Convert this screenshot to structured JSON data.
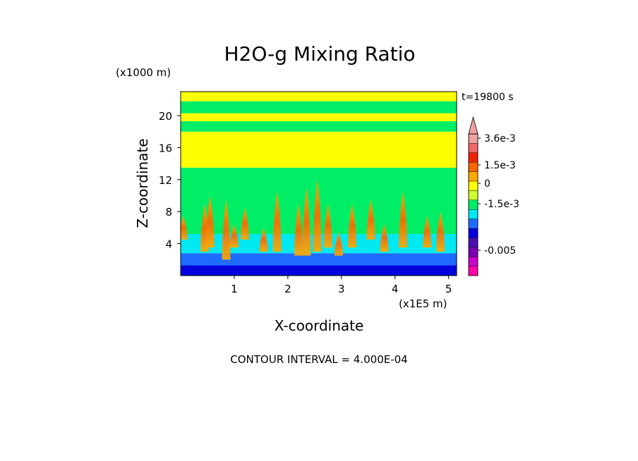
{
  "chart_data": {
    "type": "heatmap",
    "title": "H2O-g Mixing Ratio",
    "xlabel": "X-coordinate",
    "ylabel": "Z-coordinate",
    "x_unit": "(x1E5 m)",
    "y_unit": "(x1000 m)",
    "time_label": "t=19800 s",
    "footer": "CONTOUR INTERVAL = 4.000E-04",
    "xlim": [
      0,
      5.15
    ],
    "ylim": [
      0,
      23
    ],
    "x_ticks": [
      1,
      2,
      3,
      4,
      5
    ],
    "x_tick_labels": [
      "1",
      "2",
      "3",
      "4",
      "5"
    ],
    "y_ticks": [
      4,
      8,
      12,
      16,
      20
    ],
    "y_tick_labels": [
      "4",
      "8",
      "12",
      "16",
      "20"
    ],
    "colorbar": {
      "bands": [
        {
          "color": "#ff00aa"
        },
        {
          "color": "#cc00cc"
        },
        {
          "color": "#7a00b0"
        },
        {
          "color": "#4b0fb0"
        },
        {
          "color": "#0000dd"
        },
        {
          "color": "#1e6cff"
        },
        {
          "color": "#00e8f0"
        },
        {
          "color": "#00ee66"
        },
        {
          "color": "#ccff33"
        },
        {
          "color": "#ffff00"
        },
        {
          "color": "#ffaa00"
        },
        {
          "color": "#ff6600"
        },
        {
          "color": "#ee2200"
        },
        {
          "color": "#ee6666"
        },
        {
          "color": "#f0a0a0"
        }
      ],
      "labels": [
        {
          "text": "3.6e-3",
          "value": 0.0036
        },
        {
          "text": "1.5e-3",
          "value": 0.0015
        },
        {
          "text": "0",
          "value": 0
        },
        {
          "text": "-1.5e-3",
          "value": -0.0015
        },
        {
          "text": "-0.005",
          "value": -0.005
        }
      ]
    },
    "regions": [
      {
        "zmin": 0,
        "zmax": 1.3,
        "color": "#0000dd"
      },
      {
        "zmin": 1.3,
        "zmax": 2.8,
        "color": "#1e6cff"
      },
      {
        "zmin": 2.8,
        "zmax": 5.2,
        "color": "#00e8f0"
      },
      {
        "zmin": 5.2,
        "zmax": 13.5,
        "color": "#00ee66"
      },
      {
        "zmin": 13.5,
        "zmax": 18.0,
        "color": "#ffff00"
      },
      {
        "zmin": 18.0,
        "zmax": 19.3,
        "color": "#00ee66"
      },
      {
        "zmin": 19.3,
        "zmax": 20.3,
        "color": "#ffff00"
      },
      {
        "zmin": 20.3,
        "zmax": 21.8,
        "color": "#00ee66"
      },
      {
        "zmin": 21.8,
        "zmax": 23,
        "color": "#ffff00"
      }
    ],
    "plumes": [
      {
        "x": 0.05,
        "z0": 4.5,
        "z1": 7.5
      },
      {
        "x": 0.45,
        "z0": 3.0,
        "z1": 9.0
      },
      {
        "x": 0.55,
        "z0": 3.5,
        "z1": 10.0
      },
      {
        "x": 0.85,
        "z0": 2.0,
        "z1": 9.5
      },
      {
        "x": 1.0,
        "z0": 3.5,
        "z1": 6.5
      },
      {
        "x": 1.2,
        "z0": 4.5,
        "z1": 8.5
      },
      {
        "x": 1.55,
        "z0": 3.0,
        "z1": 6.0
      },
      {
        "x": 1.8,
        "z0": 3.0,
        "z1": 10.5
      },
      {
        "x": 2.2,
        "z0": 2.5,
        "z1": 9.0
      },
      {
        "x": 2.35,
        "z0": 2.5,
        "z1": 11.0
      },
      {
        "x": 2.55,
        "z0": 3.0,
        "z1": 12.0
      },
      {
        "x": 2.75,
        "z0": 3.5,
        "z1": 9.0
      },
      {
        "x": 2.95,
        "z0": 2.5,
        "z1": 5.5
      },
      {
        "x": 3.2,
        "z0": 3.5,
        "z1": 9.0
      },
      {
        "x": 3.55,
        "z0": 4.5,
        "z1": 9.5
      },
      {
        "x": 3.8,
        "z0": 3.0,
        "z1": 6.5
      },
      {
        "x": 4.15,
        "z0": 3.5,
        "z1": 10.5
      },
      {
        "x": 4.6,
        "z0": 3.5,
        "z1": 7.5
      },
      {
        "x": 4.85,
        "z0": 3.0,
        "z1": 8.0
      }
    ]
  }
}
